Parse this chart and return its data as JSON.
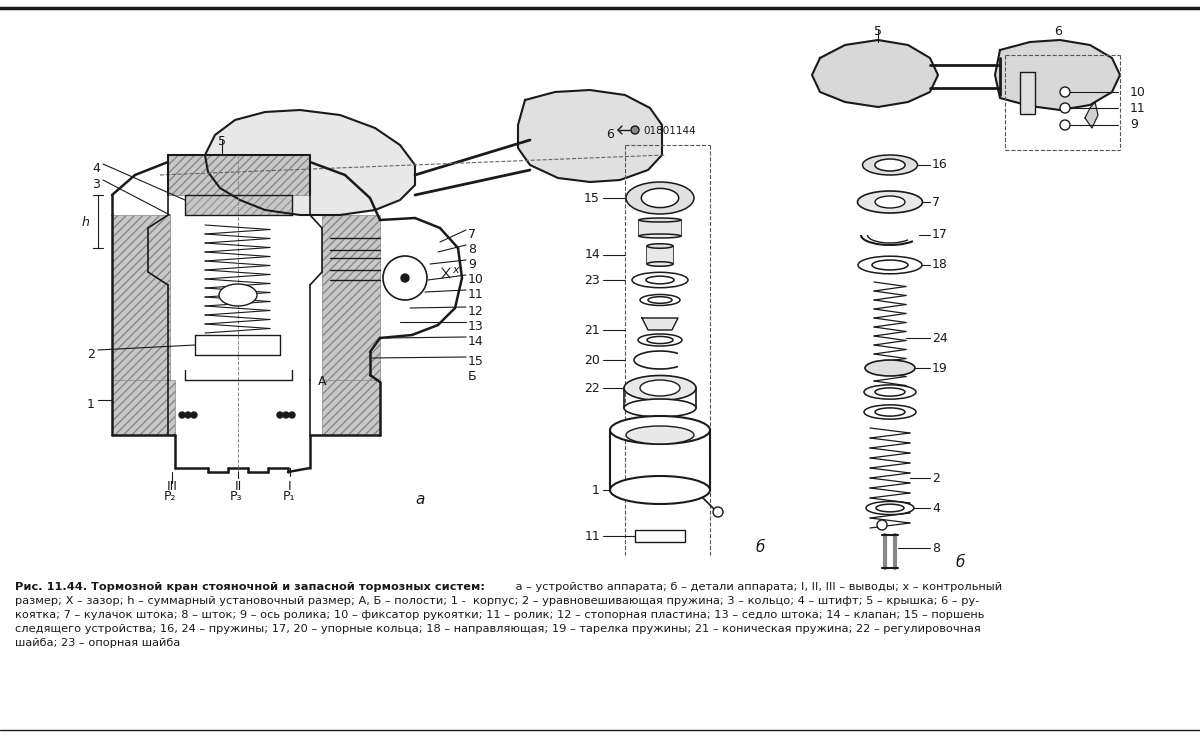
{
  "bg_color": "#ffffff",
  "line_color": "#1a1a1a",
  "caption_bold": "Рис. 11.44. Тормозной кран стояночной и запасной тормозных систем:",
  "caption_rest": " а – устройство аппарата; б – детали аппарата; I, II, III – выводы; х – контрольный",
  "caption_l2": "размер; Х – зазор; h – суммарный установочный размер; А, Б – полости; 1 -  корпус; 2 – уравновешивающая пружина; 3 – кольцо; 4 – штифт; 5 – крышка; 6 – ру-",
  "caption_l3": "коятка; 7 – кулачок штока; 8 – шток; 9 – ось ролика; 10 – фиксатор рукоятки; 11 – ролик; 12 – стопорная пластина; 13 – седло штока; 14 – клапан; 15 – поршень",
  "caption_l4": "следящего устройства; 16, 24 – пружины; 17, 20 – упорные кольца; 18 – направляющая; 19 – тарелка пружины; 21 – коническая пружина; 22 – регулировочная",
  "caption_l5": "шайба; 23 – опорная шайба"
}
